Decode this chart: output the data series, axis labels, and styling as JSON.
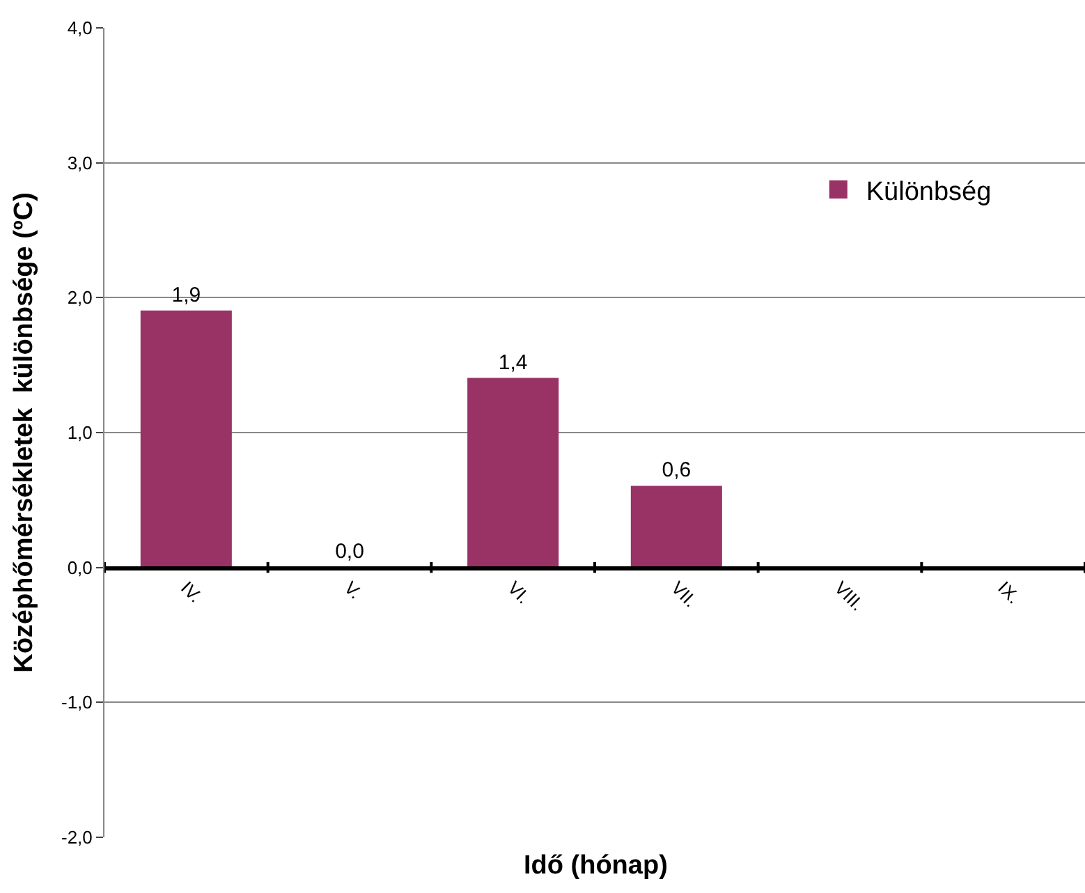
{
  "chart_data": {
    "type": "bar",
    "xlabel": "Idő (hónap)",
    "ylabel": "Középhőmérsékletek  különbsége (ºC)",
    "categories": [
      "IV.",
      "V.",
      "VI.",
      "VII.",
      "VIII.",
      "IX."
    ],
    "series": [
      {
        "name": "Különbség",
        "color": "#993366",
        "values": [
          1.9,
          0.0,
          1.4,
          0.6,
          null,
          null
        ],
        "value_labels": [
          "1,9",
          "0,0",
          "1,4",
          "0,6",
          null,
          null
        ]
      }
    ],
    "ylim": [
      -2,
      4
    ],
    "yticks": [
      {
        "value": -2,
        "label": "-2,0"
      },
      {
        "value": -1,
        "label": "-1,0"
      },
      {
        "value": 0,
        "label": "0,0"
      },
      {
        "value": 1,
        "label": "1,0"
      },
      {
        "value": 2,
        "label": "2,0"
      },
      {
        "value": 3,
        "label": "3,0"
      },
      {
        "value": 4,
        "label": "4,0"
      }
    ],
    "grid": "y",
    "legend": "top right"
  }
}
